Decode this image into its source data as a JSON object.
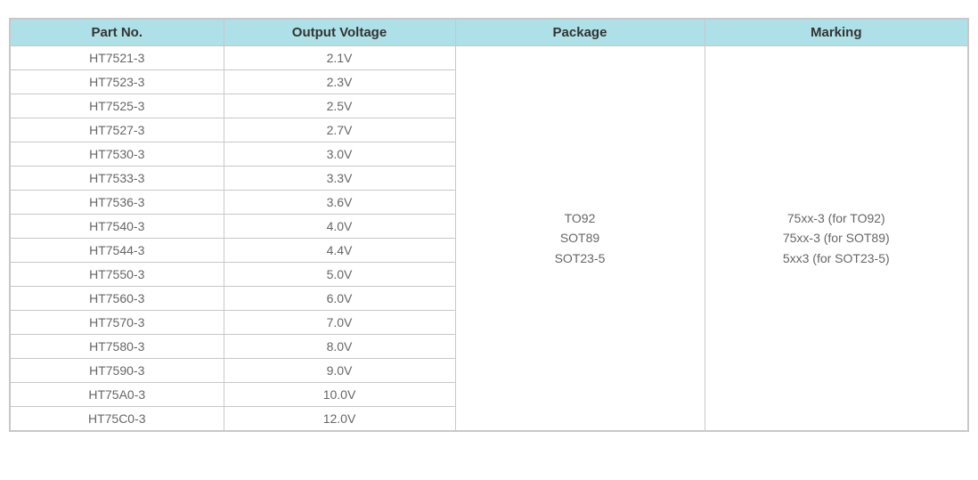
{
  "table": {
    "columns": [
      "Part No.",
      "Output Voltage",
      "Package",
      "Marking"
    ],
    "col_widths": [
      "240px",
      "260px",
      "280px",
      "296px"
    ],
    "header_bg": "#aee0e7",
    "header_text_color": "#333333",
    "border_color": "#c8c8c8",
    "cell_text_color": "#666666",
    "background_color": "#ffffff",
    "font_size_header": 15,
    "font_size_body": 14,
    "rows": [
      {
        "part": "HT7521-3",
        "voltage": "2.1V"
      },
      {
        "part": "HT7523-3",
        "voltage": "2.3V"
      },
      {
        "part": "HT7525-3",
        "voltage": "2.5V"
      },
      {
        "part": "HT7527-3",
        "voltage": "2.7V"
      },
      {
        "part": "HT7530-3",
        "voltage": "3.0V"
      },
      {
        "part": "HT7533-3",
        "voltage": "3.3V"
      },
      {
        "part": "HT7536-3",
        "voltage": "3.6V"
      },
      {
        "part": "HT7540-3",
        "voltage": "4.0V"
      },
      {
        "part": "HT7544-3",
        "voltage": "4.4V"
      },
      {
        "part": "HT7550-3",
        "voltage": "5.0V"
      },
      {
        "part": "HT7560-3",
        "voltage": "6.0V"
      },
      {
        "part": "HT7570-3",
        "voltage": "7.0V"
      },
      {
        "part": "HT7580-3",
        "voltage": "8.0V"
      },
      {
        "part": "HT7590-3",
        "voltage": "9.0V"
      },
      {
        "part": "HT75A0-3",
        "voltage": "10.0V"
      },
      {
        "part": "HT75C0-3",
        "voltage": "12.0V"
      }
    ],
    "package_lines": [
      "TO92",
      "SOT89",
      "SOT23-5"
    ],
    "marking_lines": [
      "75xx-3 (for TO92)",
      "75xx-3 (for SOT89)",
      "5xx3 (for SOT23-5)"
    ]
  }
}
